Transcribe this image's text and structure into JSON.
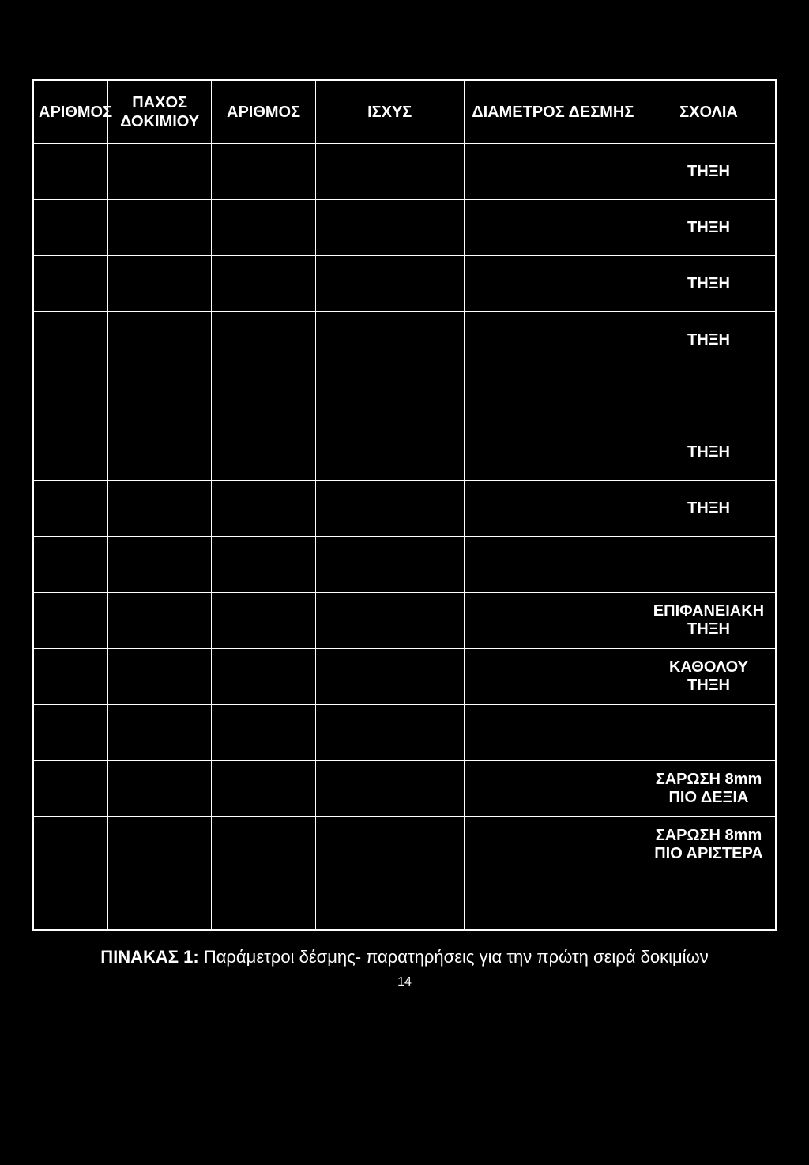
{
  "background_color": "#000000",
  "border_color": "#ffffff",
  "text_color": "#ffffff",
  "caption_label": "ΠΙΝΑΚΑΣ 1:",
  "caption_text": "Παράμετροι δέσμης- παρατηρήσεις για την πρώτη σειρά δοκιμίων",
  "page_number": "14",
  "table": {
    "columns": [
      "ΑΡΙΘΜΟΣ",
      "ΠΑΧΟΣ ΔΟΚΙΜΙΟΥ",
      "ΑΡΙΘΜΟΣ",
      "ΙΣΧΥΣ",
      "ΔΙΑΜΕΤΡΟΣ ΔΕΣΜΗΣ",
      "ΣΧΟΛΙΑ"
    ],
    "col_widths_pct": [
      10,
      14,
      14,
      20,
      24,
      18
    ],
    "rows": [
      [
        "",
        "",
        "",
        "",
        "",
        "ΤΗΞΗ"
      ],
      [
        "",
        "",
        "",
        "",
        "",
        "ΤΗΞΗ"
      ],
      [
        "",
        "",
        "",
        "",
        "",
        "ΤΗΞΗ"
      ],
      [
        "",
        "",
        "",
        "",
        "",
        "ΤΗΞΗ"
      ],
      [
        "",
        "",
        "",
        "",
        "",
        ""
      ],
      [
        "",
        "",
        "",
        "",
        "",
        "ΤΗΞΗ"
      ],
      [
        "",
        "",
        "",
        "",
        "",
        "ΤΗΞΗ"
      ],
      [
        "",
        "",
        "",
        "",
        "",
        ""
      ],
      [
        "",
        "",
        "",
        "",
        "",
        "ΕΠΙΦΑΝΕΙΑΚΗ ΤΗΞΗ"
      ],
      [
        "",
        "",
        "",
        "",
        "",
        "ΚΑΘΟΛΟΥ ΤΗΞΗ"
      ],
      [
        "",
        "",
        "",
        "",
        "",
        ""
      ],
      [
        "",
        "",
        "",
        "",
        "",
        "ΣΑΡΩΣΗ 8mm ΠΙΟ ΔΕΞΙΑ"
      ],
      [
        "",
        "",
        "",
        "",
        "",
        "ΣΑΡΩΣΗ 8mm ΠΙΟ ΑΡΙΣΤΕΡΑ"
      ],
      [
        "",
        "",
        "",
        "",
        "",
        ""
      ]
    ]
  }
}
